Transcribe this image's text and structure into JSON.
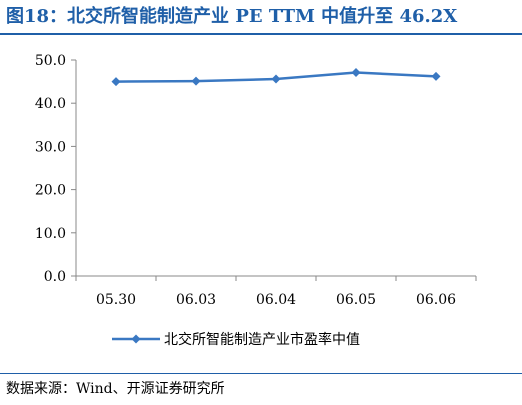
{
  "title": "图18：北交所智能制造产业 PE TTM 中值升至 46.2X",
  "source": "数据来源：Wind、开源证券研究所",
  "colors": {
    "accent": "#1f5fa8",
    "series": "#3a78c2",
    "axis": "#888888"
  },
  "chart_data": {
    "type": "line",
    "categories": [
      "05.30",
      "06.03",
      "06.04",
      "06.05",
      "06.06"
    ],
    "series": [
      {
        "name": "北交所智能制造产业市盈率中值",
        "values": [
          45.0,
          45.1,
          45.6,
          47.1,
          46.2
        ]
      }
    ],
    "ylim": [
      0,
      50
    ],
    "yticks": [
      "0.0",
      "10.0",
      "20.0",
      "30.0",
      "40.0",
      "50.0"
    ],
    "grid": false,
    "legend": "bottom"
  }
}
